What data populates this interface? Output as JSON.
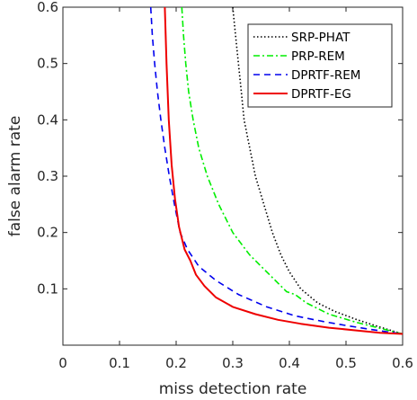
{
  "chart_data": {
    "type": "line",
    "xlabel": "miss detection rate",
    "ylabel": "false alarm rate",
    "xlim": [
      0,
      0.6
    ],
    "ylim": [
      0.0,
      0.6
    ],
    "x_ticks": [
      "0",
      "0.1",
      "0.2",
      "0.3",
      "0.4",
      "0.5",
      "0.6"
    ],
    "y_ticks": [
      "0.1",
      "0.2",
      "0.3",
      "0.4",
      "0.5",
      "0.6"
    ],
    "legend_position": "top-right",
    "grid": false,
    "series": [
      {
        "name": "SRP-PHAT",
        "color": "#000000",
        "dash": "dotted",
        "points": [
          [
            0.3,
            0.6
          ],
          [
            0.305,
            0.55
          ],
          [
            0.31,
            0.5
          ],
          [
            0.315,
            0.45
          ],
          [
            0.32,
            0.4
          ],
          [
            0.33,
            0.35
          ],
          [
            0.34,
            0.3
          ],
          [
            0.355,
            0.25
          ],
          [
            0.37,
            0.2
          ],
          [
            0.385,
            0.16
          ],
          [
            0.4,
            0.13
          ],
          [
            0.42,
            0.1
          ],
          [
            0.45,
            0.075
          ],
          [
            0.48,
            0.06
          ],
          [
            0.52,
            0.045
          ],
          [
            0.56,
            0.032
          ],
          [
            0.6,
            0.02
          ]
        ]
      },
      {
        "name": "PRP-REM",
        "color": "#00ee00",
        "dash": "dashdot",
        "points": [
          [
            0.21,
            0.6
          ],
          [
            0.213,
            0.55
          ],
          [
            0.217,
            0.5
          ],
          [
            0.222,
            0.45
          ],
          [
            0.23,
            0.4
          ],
          [
            0.24,
            0.35
          ],
          [
            0.255,
            0.3
          ],
          [
            0.275,
            0.25
          ],
          [
            0.3,
            0.2
          ],
          [
            0.33,
            0.16
          ],
          [
            0.36,
            0.13
          ],
          [
            0.395,
            0.095
          ],
          [
            0.41,
            0.09
          ],
          [
            0.43,
            0.075
          ],
          [
            0.47,
            0.055
          ],
          [
            0.52,
            0.04
          ],
          [
            0.56,
            0.03
          ],
          [
            0.6,
            0.02
          ]
        ]
      },
      {
        "name": "DPRTF-REM",
        "color": "#0000ee",
        "dash": "dashed",
        "points": [
          [
            0.155,
            0.6
          ],
          [
            0.158,
            0.55
          ],
          [
            0.162,
            0.5
          ],
          [
            0.167,
            0.45
          ],
          [
            0.173,
            0.4
          ],
          [
            0.18,
            0.35
          ],
          [
            0.188,
            0.3
          ],
          [
            0.197,
            0.25
          ],
          [
            0.207,
            0.2
          ],
          [
            0.22,
            0.17
          ],
          [
            0.24,
            0.14
          ],
          [
            0.27,
            0.115
          ],
          [
            0.31,
            0.09
          ],
          [
            0.36,
            0.068
          ],
          [
            0.41,
            0.052
          ],
          [
            0.46,
            0.042
          ],
          [
            0.5,
            0.035
          ],
          [
            0.55,
            0.027
          ],
          [
            0.6,
            0.02
          ]
        ]
      },
      {
        "name": "DPRTF-EG",
        "color": "#ee0000",
        "dash": "solid",
        "points": [
          [
            0.18,
            0.6
          ],
          [
            0.183,
            0.5
          ],
          [
            0.187,
            0.4
          ],
          [
            0.192,
            0.32
          ],
          [
            0.198,
            0.26
          ],
          [
            0.205,
            0.21
          ],
          [
            0.215,
            0.17
          ],
          [
            0.225,
            0.15
          ],
          [
            0.235,
            0.125
          ],
          [
            0.25,
            0.105
          ],
          [
            0.27,
            0.085
          ],
          [
            0.3,
            0.068
          ],
          [
            0.34,
            0.055
          ],
          [
            0.38,
            0.045
          ],
          [
            0.42,
            0.038
          ],
          [
            0.47,
            0.031
          ],
          [
            0.52,
            0.026
          ],
          [
            0.56,
            0.022
          ],
          [
            0.6,
            0.02
          ]
        ]
      }
    ]
  }
}
